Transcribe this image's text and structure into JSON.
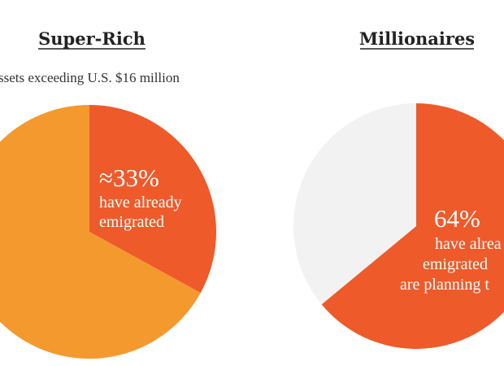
{
  "chart_data": [
    {
      "type": "pie",
      "title": "Super-Rich",
      "subtitle": "ssets exceeding U.S. $16 million",
      "slices": [
        {
          "name": "have already emigrated",
          "value": 33,
          "color": "#EF5A2A"
        },
        {
          "name": "",
          "value": 67,
          "color": "#F4992E"
        }
      ],
      "annotation": {
        "value_text": "≈33%",
        "lines": [
          "have already",
          "emigrated"
        ]
      }
    },
    {
      "type": "pie",
      "title": "Millionaires",
      "slices": [
        {
          "name": "have already emigrated or are planning to",
          "value": 64,
          "color": "#EF5A2A"
        },
        {
          "name": "",
          "value": 36,
          "color": "#F2F2F2"
        }
      ],
      "annotation": {
        "value_text": "64%",
        "lines": [
          "have alrea",
          "emigrated",
          "are planning t"
        ]
      }
    }
  ]
}
